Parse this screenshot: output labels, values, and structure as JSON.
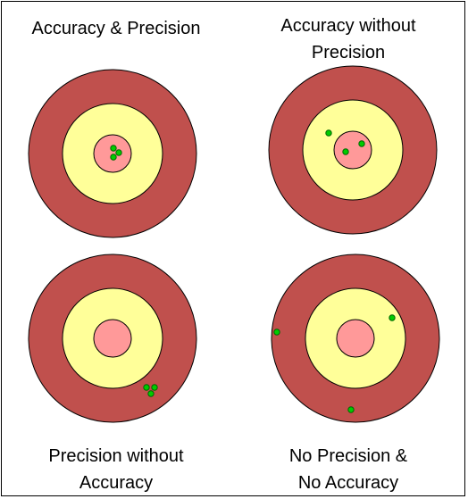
{
  "colors": {
    "outer_ring": "#c0504d",
    "middle_ring": "#ffff99",
    "bullseye": "#ff9999",
    "ring_stroke": "#000000",
    "hit_fill": "#00cc00",
    "hit_stroke": "#006600"
  },
  "panels": [
    {
      "key": "tl",
      "caption_lines": [
        "Accuracy & Precision"
      ]
    },
    {
      "key": "tr",
      "caption_lines": [
        "Accuracy without",
        "Precision"
      ]
    },
    {
      "key": "bl",
      "caption_lines": [
        "Precision without",
        "Accuracy"
      ]
    },
    {
      "key": "br",
      "caption_lines": [
        "No Precision &",
        "No Accuracy"
      ]
    }
  ]
}
